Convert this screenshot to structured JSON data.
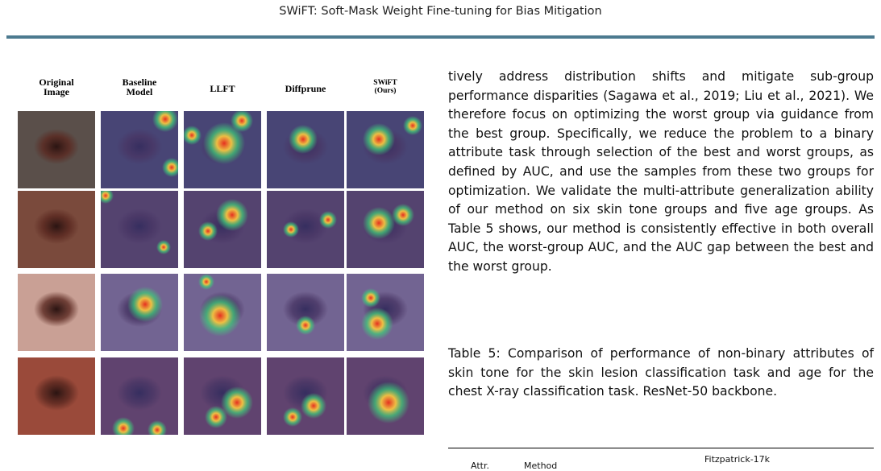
{
  "header": {
    "title": "SWiFT: Soft-Mask Weight Fine-tuning for Bias Mitigation"
  },
  "figure": {
    "columns": [
      {
        "label": "Original\nImage"
      },
      {
        "label": "Baseline\nModel"
      },
      {
        "label": "LLFT"
      },
      {
        "label": "Diffprune"
      },
      {
        "label": "SWiFT\n(Ours)"
      }
    ],
    "rows": [
      {
        "content": "skin lesion on dark skin",
        "base_color": "#5a4f4a"
      },
      {
        "content": "scaly plaque lesion",
        "base_color": "#7a4a3c"
      },
      {
        "content": "lesion near ear",
        "base_color": "#c9a095"
      },
      {
        "content": "ulcerated lesion",
        "base_color": "#9a4a3a"
      }
    ],
    "heatmap_colors": {
      "overlay_base": "#3d3f8f",
      "hot": "#e53020",
      "warm": "#f5c542",
      "mid": "#3fd07a"
    }
  },
  "body": {
    "paragraph": "tively address distribution shifts and mitigate sub-group performance disparities (Sagawa et al., 2019; Liu et al., 2021). We therefore focus on optimizing the worst group via guidance from the best group. Specifically, we reduce the problem to a binary attribute task through selection of the best and worst groups, as defined by AUC, and use the samples from these two groups for optimization. We validate the multi-attribute generalization ability of our method on six skin tone groups and five age groups. As Table 5 shows, our method is consistently effective in both overall AUC, the worst-group AUC, and the AUC gap between the best and the worst group.",
    "caption": "Table 5: Comparison of performance of non-binary attributes of skin tone for the skin lesion classification task and age for the chest X-ray classification task. ResNet-50 backbone."
  },
  "table": {
    "group_header": "Fitzpatrick-17k",
    "col_attr": "Attr.",
    "col_method": "Method"
  }
}
